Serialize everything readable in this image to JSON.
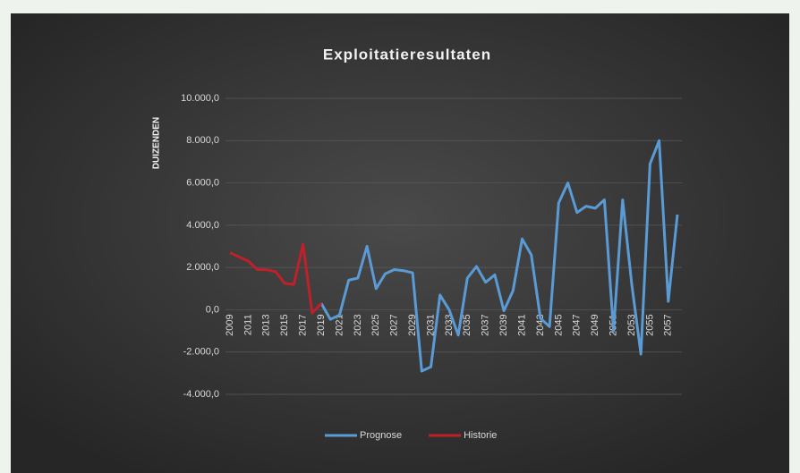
{
  "chart_data": {
    "type": "line",
    "title": "Exploitatieresultaten",
    "y_axis_label": "DUIZENDEN",
    "categories": [
      "2009",
      null,
      "2011",
      null,
      "2013",
      null,
      "2015",
      null,
      "2017",
      null,
      "2019",
      null,
      "2021",
      null,
      "2023",
      null,
      "2025",
      null,
      "2027",
      null,
      "2029",
      null,
      "2031",
      null,
      "2033",
      null,
      "2035",
      null,
      "2037",
      null,
      "2039",
      null,
      "2041",
      null,
      "2043",
      null,
      "2045",
      null,
      "2047",
      null,
      "2049",
      null,
      "2051",
      null,
      "2053",
      null,
      "2055",
      null,
      "2057",
      null
    ],
    "series": [
      {
        "name": "Prognose",
        "color": "#5b9bd5",
        "values": [
          null,
          null,
          null,
          null,
          null,
          null,
          null,
          null,
          null,
          null,
          300,
          -450,
          -250,
          1400,
          1500,
          3000,
          1000,
          1700,
          1900,
          1850,
          1750,
          -2900,
          -2700,
          700,
          0,
          -1200,
          1500,
          2050,
          1300,
          1650,
          -50,
          900,
          3350,
          2600,
          -400,
          -800,
          5050,
          6000,
          4600,
          4900,
          4800,
          5200,
          -1000,
          5200,
          1200,
          -2100,
          6900,
          8000,
          400,
          4500
        ]
      },
      {
        "name": "Historie",
        "color": "#c0202a",
        "values": [
          2700,
          2500,
          2300,
          1900,
          1900,
          1800,
          1250,
          1200,
          3100,
          -150,
          300,
          null,
          null,
          null,
          null,
          null,
          null,
          null,
          null,
          null,
          null,
          null,
          null,
          null,
          null,
          null,
          null,
          null,
          null,
          null,
          null,
          null,
          null,
          null,
          null,
          null,
          null,
          null,
          null,
          null,
          null,
          null,
          null,
          null,
          null,
          null,
          null,
          null,
          null,
          null
        ]
      }
    ],
    "ylim": [
      -4000,
      10000
    ],
    "yticks": [
      {
        "value": -4000,
        "label": "-4.000,0"
      },
      {
        "value": -2000,
        "label": "-2.000,0"
      },
      {
        "value": 0,
        "label": "0,0"
      },
      {
        "value": 2000,
        "label": "2.000,0"
      },
      {
        "value": 4000,
        "label": "4.000,0"
      },
      {
        "value": 6000,
        "label": "6.000,0"
      },
      {
        "value": 8000,
        "label": "8.000,0"
      },
      {
        "value": 10000,
        "label": "10.000,0"
      }
    ],
    "grid": true,
    "legend": "bottom"
  }
}
